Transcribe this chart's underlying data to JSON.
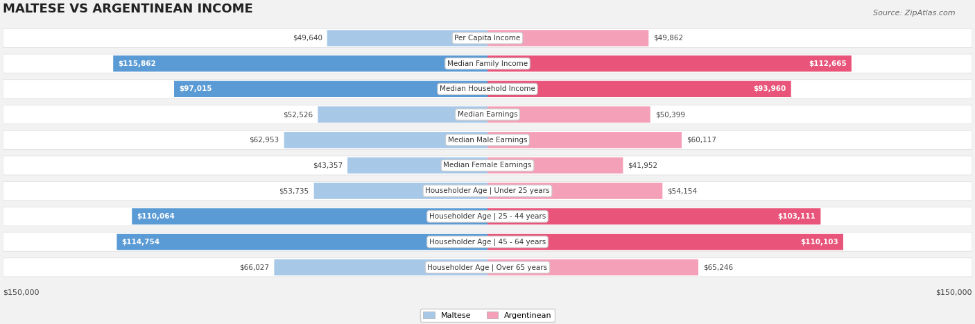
{
  "title": "MALTESE VS ARGENTINEAN INCOME",
  "source": "Source: ZipAtlas.com",
  "categories": [
    "Per Capita Income",
    "Median Family Income",
    "Median Household Income",
    "Median Earnings",
    "Median Male Earnings",
    "Median Female Earnings",
    "Householder Age | Under 25 years",
    "Householder Age | 25 - 44 years",
    "Householder Age | 45 - 64 years",
    "Householder Age | Over 65 years"
  ],
  "maltese_values": [
    49640,
    115862,
    97015,
    52526,
    62953,
    43357,
    53735,
    110064,
    114754,
    66027
  ],
  "argentinean_values": [
    49862,
    112665,
    93960,
    50399,
    60117,
    41952,
    54154,
    103111,
    110103,
    65246
  ],
  "maltese_labels": [
    "$49,640",
    "$115,862",
    "$97,015",
    "$52,526",
    "$62,953",
    "$43,357",
    "$53,735",
    "$110,064",
    "$114,754",
    "$66,027"
  ],
  "argentinean_labels": [
    "$49,862",
    "$112,665",
    "$93,960",
    "$50,399",
    "$60,117",
    "$41,952",
    "$54,154",
    "$103,111",
    "$110,103",
    "$65,246"
  ],
  "maltese_high": [
    false,
    true,
    true,
    false,
    false,
    false,
    false,
    true,
    true,
    false
  ],
  "argentinean_high": [
    false,
    true,
    true,
    false,
    false,
    false,
    false,
    true,
    true,
    false
  ],
  "max_value": 150000,
  "maltese_color_normal": "#a8c8e8",
  "maltese_color_high": "#5b9bd5",
  "argentinean_color_normal": "#f4a0b8",
  "argentinean_color_high": "#e8547a",
  "bg_color": "#f0f0f0",
  "row_bg_color": "#f8f8f8",
  "legend_maltese": "Maltese",
  "legend_argentinean": "Argentinean"
}
